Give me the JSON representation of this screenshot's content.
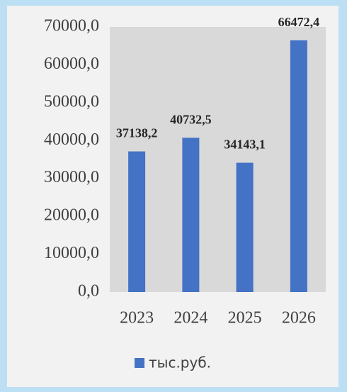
{
  "chart_data": {
    "type": "bar",
    "categories": [
      "2023",
      "2024",
      "2025",
      "2026"
    ],
    "series": [
      {
        "name": "тыс.руб.",
        "color": "#4472c4",
        "values": [
          37138.2,
          40732.5,
          34143.1,
          66472.4
        ],
        "value_labels": [
          "37138,2",
          "40732,5",
          "34143,1",
          "66472,4"
        ]
      }
    ],
    "ylim": [
      0,
      70000
    ],
    "yticks": [
      {
        "value": 0,
        "label": "0,0"
      },
      {
        "value": 10000,
        "label": "10000,0"
      },
      {
        "value": 20000,
        "label": "20000,0"
      },
      {
        "value": 30000,
        "label": "30000,0"
      },
      {
        "value": 40000,
        "label": "40000,0"
      },
      {
        "value": 50000,
        "label": "50000,0"
      },
      {
        "value": 60000,
        "label": "60000,0"
      },
      {
        "value": 70000,
        "label": "70000,0"
      }
    ],
    "legend": "bottom"
  }
}
